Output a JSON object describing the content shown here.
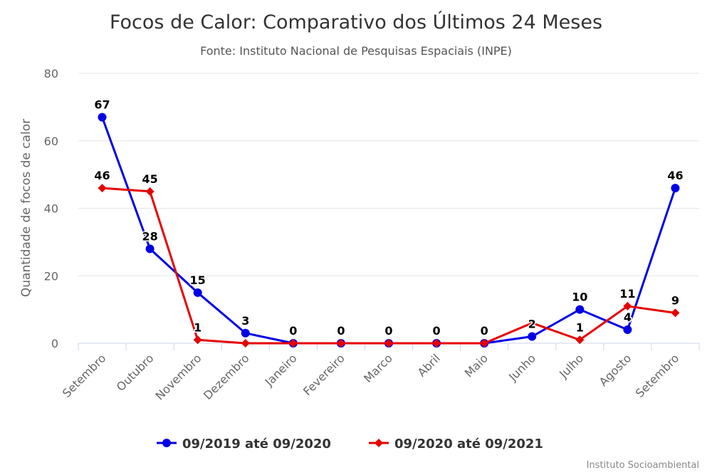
{
  "chart_data": {
    "type": "line",
    "title": "Focos de Calor: Comparativo dos Últimos 24 Meses",
    "subtitle": "Fonte: Instituto Nacional de Pesquisas Espaciais (INPE)",
    "ylabel": "Quantidade de focos de calor",
    "xlabel": "",
    "ylim": [
      0,
      80
    ],
    "yticks": [
      0,
      20,
      40,
      60,
      80
    ],
    "grid": true,
    "legend": "bottom",
    "categories": [
      "Setembro",
      "Outubro",
      "Novembro",
      "Dezembro",
      "Janeiro",
      "Fevereiro",
      "Marco",
      "Abril",
      "Maio",
      "Junho",
      "Julho",
      "Agosto",
      "Setembro"
    ],
    "series": [
      {
        "name": "09/2019 até 09/2020",
        "color": "#0000e6",
        "marker": "circle",
        "values": [
          67,
          28,
          15,
          3,
          0,
          0,
          0,
          0,
          0,
          2,
          10,
          4,
          46
        ]
      },
      {
        "name": "09/2020 até 09/2021",
        "color": "#e60000",
        "marker": "diamond",
        "values": [
          46,
          45,
          1,
          0,
          0,
          0,
          0,
          0,
          0,
          6,
          1,
          11,
          9
        ]
      }
    ],
    "credits": "Instituto Socioambiental"
  }
}
